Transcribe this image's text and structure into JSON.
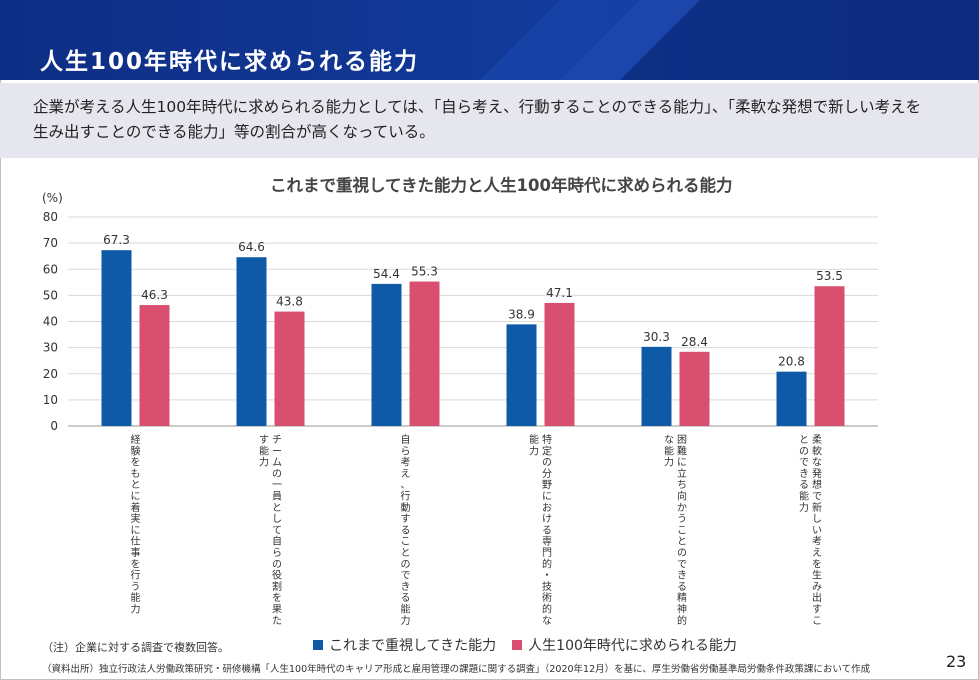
{
  "header": {
    "title": "人生100年時代に求められる能力"
  },
  "summary": {
    "text": "企業が考える人生100年時代に求められる能力としては、「自ら考え、行動することのできる能力」、「柔軟な発想で新しい考えを生み出すことのできる能力」等の割合が高くなっている。"
  },
  "chart_data": {
    "type": "bar",
    "title": "これまで重視してきた能力と人生100年時代に求められる能力",
    "ylabel": "(%)",
    "xlabel": "",
    "ylim": [
      0,
      80
    ],
    "yticks": [
      0,
      10,
      20,
      30,
      40,
      50,
      60,
      70,
      80
    ],
    "grid": true,
    "legend_position": "bottom",
    "categories": [
      "経験をもとに着実に仕事を行う能力",
      "チームの一員として自らの役割を果たす能力",
      "自ら考え、行動することのできる能力",
      "特定の分野における専門的・技術的な能力",
      "困難に立ち向かうことのできる精神的な能力",
      "柔軟な発想で新しい考えを生み出すことのできる能力"
    ],
    "series": [
      {
        "name": "これまで重視してきた能力",
        "color": "#0e5aa7",
        "values": [
          67.3,
          64.6,
          54.4,
          38.9,
          30.3,
          20.8
        ],
        "labels": [
          "67.3",
          "64.6",
          "54.4",
          "38.9",
          "30.3",
          "20.8"
        ]
      },
      {
        "name": "人生100年時代に求められる能力",
        "color": "#d94f70",
        "values": [
          46.3,
          43.8,
          55.3,
          47.1,
          28.4,
          53.5
        ],
        "labels": [
          "46.3",
          "43.8",
          "55.3",
          "47.1",
          "28.4",
          "53.5"
        ]
      }
    ]
  },
  "footer": {
    "note": "（注）企業に対する調査で複数回答。",
    "source": "（資料出所）独立行政法人労働政策研究・研修機構「人生100年時代のキャリア形成と雇用管理の課題に関する調査」（2020年12月）を基に、厚生労働省労働基準局労働条件政策課において作成",
    "page_number": "23"
  }
}
